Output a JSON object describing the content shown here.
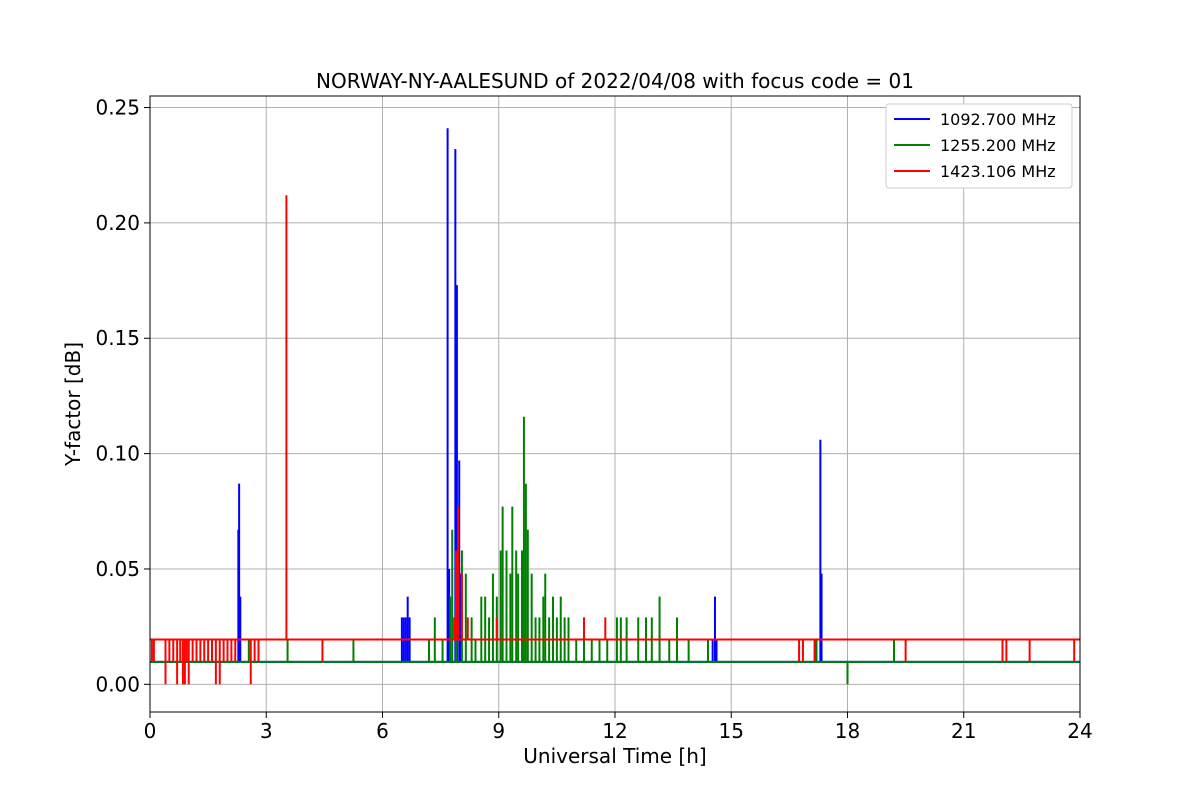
{
  "chart_data": {
    "type": "line",
    "title": "NORWAY-NY-AALESUND of 2022/04/08 with focus code = 01",
    "xlabel": "Universal Time [h]",
    "ylabel": "Y-factor [dB]",
    "xlim": [
      0,
      24
    ],
    "ylim": [
      -0.012,
      0.255
    ],
    "xticks": [
      0,
      3,
      6,
      9,
      12,
      15,
      18,
      21,
      24
    ],
    "xtick_labels": [
      "0",
      "3",
      "6",
      "9",
      "12",
      "15",
      "18",
      "21",
      "24"
    ],
    "yticks": [
      0.0,
      0.05,
      0.1,
      0.15,
      0.2,
      0.25
    ],
    "ytick_labels": [
      "0.00",
      "0.05",
      "0.10",
      "0.15",
      "0.20",
      "0.25"
    ],
    "grid": true,
    "legend_position": "top-right",
    "series": [
      {
        "name": "1092.700 MHz",
        "color": "#0000ff",
        "baseline": 0.0097,
        "spikes": [
          [
            2.28,
            0.067
          ],
          [
            2.3,
            0.087
          ],
          [
            2.33,
            0.038
          ],
          [
            6.5,
            0.029
          ],
          [
            6.55,
            0.029
          ],
          [
            6.6,
            0.029
          ],
          [
            6.65,
            0.038
          ],
          [
            6.7,
            0.029
          ],
          [
            7.68,
            0.241
          ],
          [
            7.72,
            0.05
          ],
          [
            7.88,
            0.232
          ],
          [
            7.92,
            0.173
          ],
          [
            7.98,
            0.097
          ],
          [
            8.02,
            0.048
          ],
          [
            14.52,
            0.019
          ],
          [
            14.58,
            0.038
          ],
          [
            14.62,
            0.019
          ],
          [
            17.3,
            0.106
          ],
          [
            17.33,
            0.048
          ]
        ]
      },
      {
        "name": "1255.200 MHz",
        "color": "#008000",
        "baseline": 0.0097,
        "spikes": [
          [
            2.55,
            0.019
          ],
          [
            3.55,
            0.019
          ],
          [
            5.25,
            0.019
          ],
          [
            7.2,
            0.019
          ],
          [
            7.35,
            0.029
          ],
          [
            7.55,
            0.019
          ],
          [
            7.75,
            0.038
          ],
          [
            7.8,
            0.067
          ],
          [
            7.9,
            0.058
          ],
          [
            8.05,
            0.058
          ],
          [
            8.15,
            0.048
          ],
          [
            8.3,
            0.029
          ],
          [
            8.4,
            0.019
          ],
          [
            8.55,
            0.038
          ],
          [
            8.65,
            0.038
          ],
          [
            8.75,
            0.029
          ],
          [
            8.85,
            0.048
          ],
          [
            8.95,
            0.038
          ],
          [
            9.05,
            0.058
          ],
          [
            9.1,
            0.077
          ],
          [
            9.2,
            0.058
          ],
          [
            9.3,
            0.048
          ],
          [
            9.35,
            0.077
          ],
          [
            9.45,
            0.058
          ],
          [
            9.5,
            0.048
          ],
          [
            9.6,
            0.058
          ],
          [
            9.65,
            0.116
          ],
          [
            9.7,
            0.087
          ],
          [
            9.75,
            0.067
          ],
          [
            9.85,
            0.048
          ],
          [
            9.95,
            0.029
          ],
          [
            10.05,
            0.029
          ],
          [
            10.15,
            0.038
          ],
          [
            10.2,
            0.048
          ],
          [
            10.3,
            0.029
          ],
          [
            10.4,
            0.038
          ],
          [
            10.5,
            0.029
          ],
          [
            10.6,
            0.038
          ],
          [
            10.7,
            0.029
          ],
          [
            10.8,
            0.029
          ],
          [
            11.0,
            0.019
          ],
          [
            11.2,
            0.029
          ],
          [
            11.4,
            0.019
          ],
          [
            11.6,
            0.019
          ],
          [
            11.8,
            0.019
          ],
          [
            12.05,
            0.029
          ],
          [
            12.15,
            0.029
          ],
          [
            12.3,
            0.029
          ],
          [
            12.6,
            0.029
          ],
          [
            12.8,
            0.029
          ],
          [
            12.95,
            0.029
          ],
          [
            13.15,
            0.038
          ],
          [
            13.4,
            0.019
          ],
          [
            13.6,
            0.029
          ],
          [
            13.9,
            0.019
          ],
          [
            14.4,
            0.019
          ],
          [
            17.2,
            0.019
          ],
          [
            18.0,
            0.0
          ],
          [
            19.2,
            0.019
          ]
        ]
      },
      {
        "name": "1423.106 MHz",
        "color": "#ff0000",
        "baseline": 0.0194,
        "spikes": [
          [
            0.05,
            0.0097
          ],
          [
            0.1,
            0.0097
          ],
          [
            0.4,
            0.0
          ],
          [
            0.5,
            0.0097
          ],
          [
            0.6,
            0.0097
          ],
          [
            0.7,
            0.0
          ],
          [
            0.78,
            0.0097
          ],
          [
            0.85,
            0.0
          ],
          [
            0.9,
            0.0
          ],
          [
            0.95,
            0.0097
          ],
          [
            1.0,
            0.0
          ],
          [
            1.1,
            0.0097
          ],
          [
            1.2,
            0.0097
          ],
          [
            1.3,
            0.0097
          ],
          [
            1.4,
            0.0097
          ],
          [
            1.5,
            0.0097
          ],
          [
            1.6,
            0.0097
          ],
          [
            1.7,
            0.0
          ],
          [
            1.8,
            0.0
          ],
          [
            1.9,
            0.0097
          ],
          [
            2.0,
            0.0097
          ],
          [
            2.1,
            0.0097
          ],
          [
            2.2,
            0.0097
          ],
          [
            2.6,
            0.0
          ],
          [
            2.7,
            0.0097
          ],
          [
            2.8,
            0.0097
          ],
          [
            3.52,
            0.212
          ],
          [
            4.45,
            0.0097
          ],
          [
            7.85,
            0.029
          ],
          [
            7.9,
            0.058
          ],
          [
            7.95,
            0.077
          ],
          [
            8.05,
            0.048
          ],
          [
            8.2,
            0.029
          ],
          [
            8.35,
            0.019
          ],
          [
            8.95,
            0.029
          ],
          [
            11.2,
            0.029
          ],
          [
            11.75,
            0.029
          ],
          [
            16.75,
            0.0097
          ],
          [
            16.85,
            0.0097
          ],
          [
            17.15,
            0.0097
          ],
          [
            19.5,
            0.0097
          ],
          [
            22.0,
            0.0097
          ],
          [
            22.1,
            0.0097
          ],
          [
            22.7,
            0.0097
          ],
          [
            23.85,
            0.0097
          ]
        ]
      }
    ]
  }
}
